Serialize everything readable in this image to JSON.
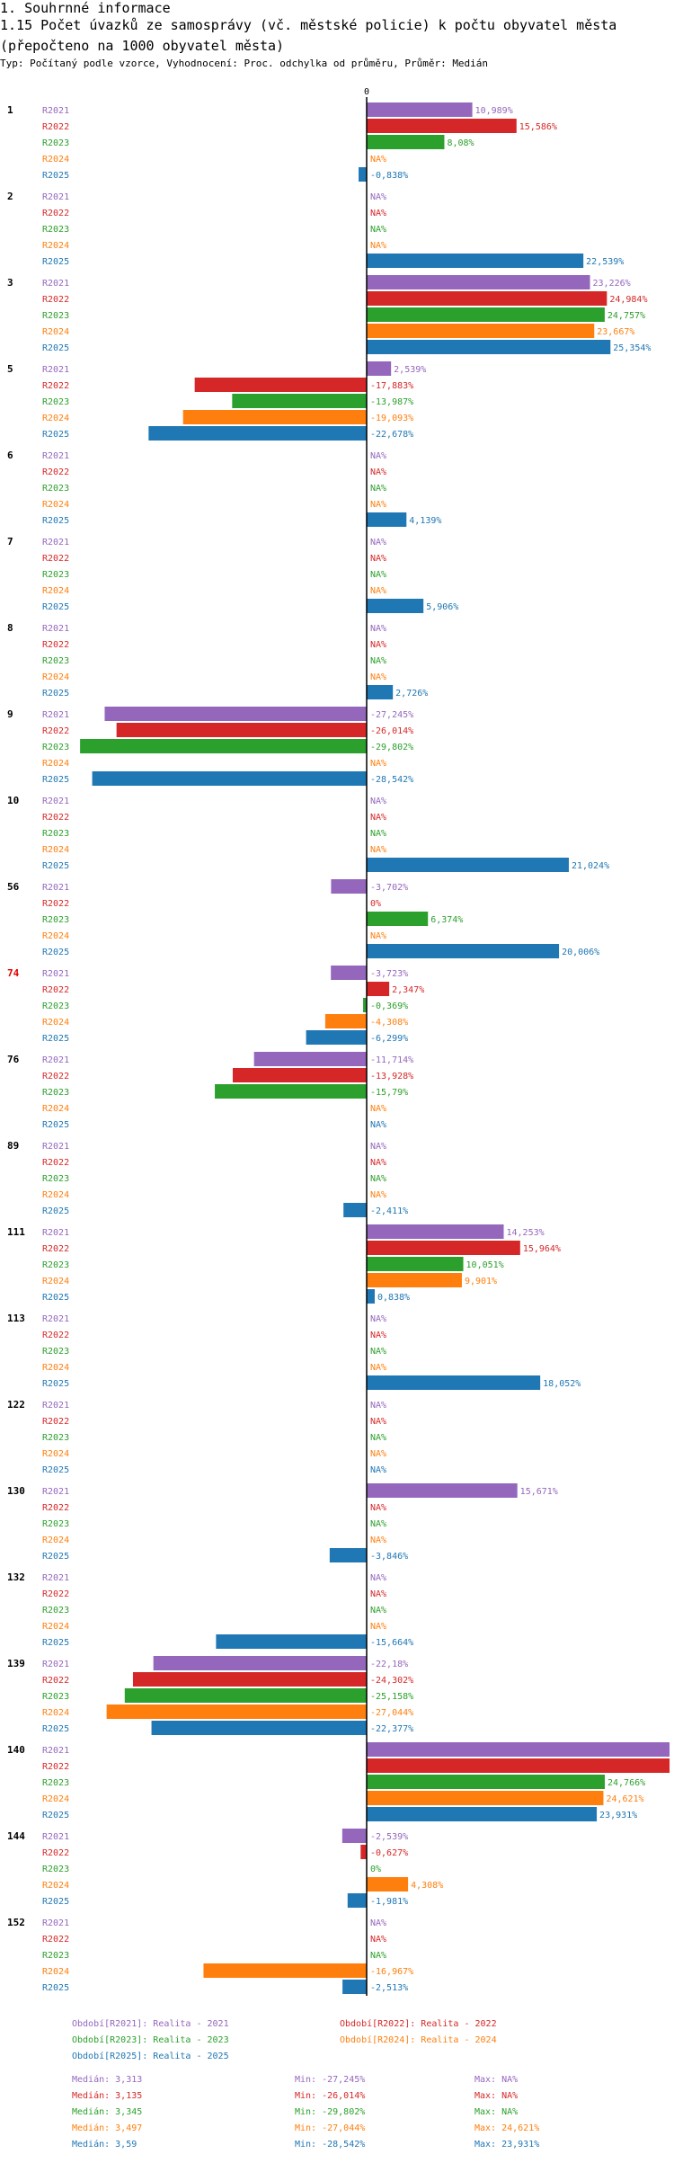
{
  "header": {
    "section": "1. Souhrnné informace",
    "title": "1.15 Počet úvazků ze samosprávy (vč. městské policie) k počtu obyvatel města (přepočteno na 1000 obyvatel města)",
    "subtitle": "Typ: Počítaný podle vzorce, Vyhodnocení: Proc. odchylka od průměru, Průměr: Medián"
  },
  "chart_data": {
    "type": "bar",
    "orientation": "horizontal",
    "zero_label": "0",
    "series": [
      {
        "name": "R2021",
        "color": "#9467bd"
      },
      {
        "name": "R2022",
        "color": "#d62728"
      },
      {
        "name": "R2023",
        "color": "#2ca02c"
      },
      {
        "name": "R2024",
        "color": "#ff7f0e"
      },
      {
        "name": "R2025",
        "color": "#1f77b4"
      }
    ],
    "groups": [
      {
        "id": "1",
        "highlight": false,
        "values": [
          10.989,
          15.586,
          8.08,
          null,
          -0.838
        ],
        "labels": [
          "10,989%",
          "15,586%",
          "8,08%",
          "NA%",
          "-0,838%"
        ]
      },
      {
        "id": "2",
        "highlight": false,
        "values": [
          null,
          null,
          null,
          null,
          22.539
        ],
        "labels": [
          "NA%",
          "NA%",
          "NA%",
          "NA%",
          "22,539%"
        ]
      },
      {
        "id": "3",
        "highlight": false,
        "values": [
          23.226,
          24.984,
          24.757,
          23.667,
          25.354
        ],
        "labels": [
          "23,226%",
          "24,984%",
          "24,757%",
          "23,667%",
          "25,354%"
        ]
      },
      {
        "id": "5",
        "highlight": false,
        "values": [
          2.539,
          -17.883,
          -13.987,
          -19.093,
          -22.678
        ],
        "labels": [
          "2,539%",
          "-17,883%",
          "-13,987%",
          "-19,093%",
          "-22,678%"
        ]
      },
      {
        "id": "6",
        "highlight": false,
        "values": [
          null,
          null,
          null,
          null,
          4.139
        ],
        "labels": [
          "NA%",
          "NA%",
          "NA%",
          "NA%",
          "4,139%"
        ]
      },
      {
        "id": "7",
        "highlight": false,
        "values": [
          null,
          null,
          null,
          null,
          5.906
        ],
        "labels": [
          "NA%",
          "NA%",
          "NA%",
          "NA%",
          "5,906%"
        ]
      },
      {
        "id": "8",
        "highlight": false,
        "values": [
          null,
          null,
          null,
          null,
          2.726
        ],
        "labels": [
          "NA%",
          "NA%",
          "NA%",
          "NA%",
          "2,726%"
        ]
      },
      {
        "id": "9",
        "highlight": false,
        "values": [
          -27.245,
          -26.014,
          -29.802,
          null,
          -28.542
        ],
        "labels": [
          "-27,245%",
          "-26,014%",
          "-29,802%",
          "NA%",
          "-28,542%"
        ]
      },
      {
        "id": "10",
        "highlight": false,
        "values": [
          null,
          null,
          null,
          null,
          21.024
        ],
        "labels": [
          "NA%",
          "NA%",
          "NA%",
          "NA%",
          "21,024%"
        ]
      },
      {
        "id": "56",
        "highlight": false,
        "values": [
          -3.702,
          0,
          6.374,
          null,
          20.006
        ],
        "labels": [
          "-3,702%",
          "0%",
          "6,374%",
          "NA%",
          "20,006%"
        ]
      },
      {
        "id": "74",
        "highlight": true,
        "values": [
          -3.723,
          2.347,
          -0.369,
          -4.308,
          -6.299
        ],
        "labels": [
          "-3,723%",
          "2,347%",
          "-0,369%",
          "-4,308%",
          "-6,299%"
        ]
      },
      {
        "id": "76",
        "highlight": false,
        "values": [
          -11.714,
          -13.928,
          -15.79,
          null,
          null
        ],
        "labels": [
          "-11,714%",
          "-13,928%",
          "-15,79%",
          "NA%",
          "NA%"
        ]
      },
      {
        "id": "89",
        "highlight": false,
        "values": [
          null,
          null,
          null,
          null,
          -2.411
        ],
        "labels": [
          "NA%",
          "NA%",
          "NA%",
          "NA%",
          "-2,411%"
        ]
      },
      {
        "id": "111",
        "highlight": false,
        "values": [
          14.253,
          15.964,
          10.051,
          9.901,
          0.838
        ],
        "labels": [
          "14,253%",
          "15,964%",
          "10,051%",
          "9,901%",
          "0,838%"
        ]
      },
      {
        "id": "113",
        "highlight": false,
        "values": [
          null,
          null,
          null,
          null,
          18.052
        ],
        "labels": [
          "NA%",
          "NA%",
          "NA%",
          "NA%",
          "18,052%"
        ]
      },
      {
        "id": "122",
        "highlight": false,
        "values": [
          null,
          null,
          null,
          null,
          null
        ],
        "labels": [
          "NA%",
          "NA%",
          "NA%",
          "NA%",
          "NA%"
        ]
      },
      {
        "id": "130",
        "highlight": false,
        "values": [
          15.671,
          null,
          null,
          null,
          -3.846
        ],
        "labels": [
          "15,671%",
          "NA%",
          "NA%",
          "NA%",
          "-3,846%"
        ]
      },
      {
        "id": "132",
        "highlight": false,
        "values": [
          null,
          null,
          null,
          null,
          -15.664
        ],
        "labels": [
          "NA%",
          "NA%",
          "NA%",
          "NA%",
          "-15,664%"
        ]
      },
      {
        "id": "139",
        "highlight": false,
        "values": [
          -22.18,
          -24.302,
          -25.158,
          -27.044,
          -22.377
        ],
        "labels": [
          "-22,18%",
          "-24,302%",
          "-25,158%",
          "-27,044%",
          "-22,377%"
        ]
      },
      {
        "id": "140",
        "highlight": false,
        "values": [
          31.5,
          31.5,
          24.766,
          24.621,
          23.931
        ],
        "labels": [
          "",
          "",
          "24,766%",
          "24,621%",
          "23,931%"
        ]
      },
      {
        "id": "144",
        "highlight": false,
        "values": [
          -2.539,
          -0.627,
          0,
          4.308,
          -1.981
        ],
        "labels": [
          "-2,539%",
          "-0,627%",
          "0%",
          "4,308%",
          "-1,981%"
        ]
      },
      {
        "id": "152",
        "highlight": false,
        "values": [
          null,
          null,
          null,
          -16.967,
          -2.513
        ],
        "labels": [
          "NA%",
          "NA%",
          "NA%",
          "-16,967%",
          "-2,513%"
        ]
      }
    ],
    "legend": [
      "Období[R2021]: Realita - 2021",
      "Období[R2022]: Realita - 2022",
      "Období[R2023]: Realita - 2023",
      "Období[R2024]: Realita - 2024",
      "Období[R2025]: Realita - 2025"
    ],
    "stats": [
      {
        "median": "Medián: 3,313",
        "min": "Min: -27,245%",
        "max": "Max: NA%"
      },
      {
        "median": "Medián: 3,135",
        "min": "Min: -26,014%",
        "max": "Max: NA%"
      },
      {
        "median": "Medián: 3,345",
        "min": "Min: -29,802%",
        "max": "Max: NA%"
      },
      {
        "median": "Medián: 3,497",
        "min": "Min: -27,044%",
        "max": "Max: 24,621%"
      },
      {
        "median": "Medián: 3,59",
        "min": "Min: -28,542%",
        "max": "Max: 23,931%"
      }
    ]
  }
}
